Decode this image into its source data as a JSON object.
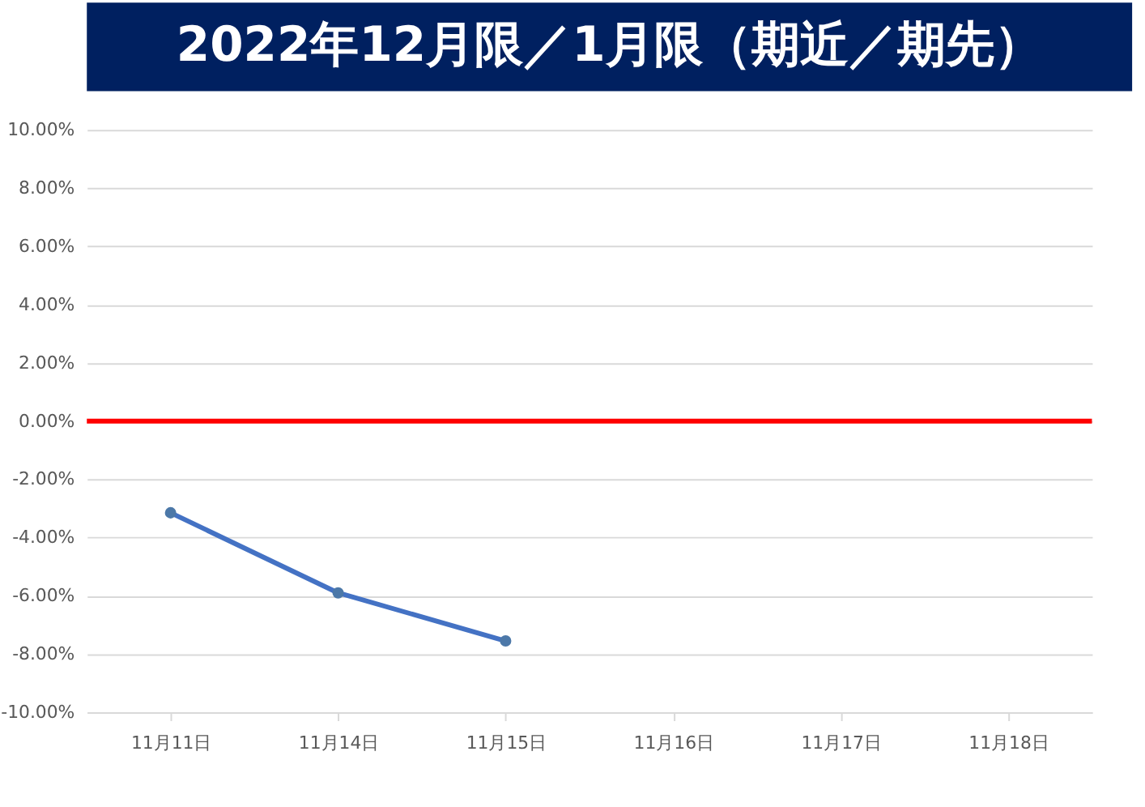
{
  "chart_data": {
    "type": "line",
    "title": "2022年12月限／1月限（期近／期先）",
    "categories": [
      "11月11日",
      "11月14日",
      "11月15日",
      "11月16日",
      "11月17日",
      "11月18日"
    ],
    "series": [
      {
        "color": "#4472c4",
        "values": [
          -3.15,
          -5.9,
          -7.55,
          null,
          null,
          null
        ]
      }
    ],
    "ylim": [
      -10,
      10
    ],
    "yticks": [
      {
        "value": -10,
        "label": "-10.00%"
      },
      {
        "value": -8,
        "label": "-8.00%"
      },
      {
        "value": -6,
        "label": "-6.00%"
      },
      {
        "value": -4,
        "label": "-4.00%"
      },
      {
        "value": -2,
        "label": "-2.00%"
      },
      {
        "value": 0,
        "label": "0.00%"
      },
      {
        "value": 2,
        "label": "2.00%"
      },
      {
        "value": 4,
        "label": "4.00%"
      },
      {
        "value": 6,
        "label": "6.00%"
      },
      {
        "value": 8,
        "label": "8.00%"
      },
      {
        "value": 10,
        "label": "10.00%"
      }
    ],
    "ref_lines": [
      {
        "axis": "y",
        "value": 0,
        "color": "#ff0000"
      }
    ],
    "grid": "y",
    "marker": "circle"
  }
}
